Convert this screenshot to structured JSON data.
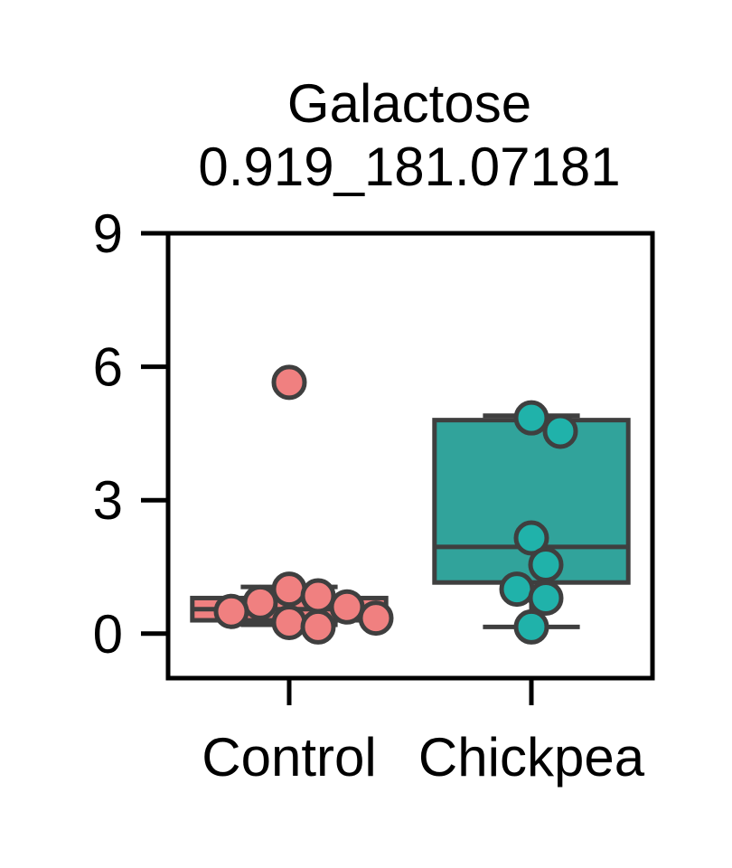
{
  "chart_data": {
    "type": "box",
    "title": "Galactose",
    "subtitle": "0.919_181.07181",
    "xlabel": "",
    "ylabel": "",
    "ylim": [
      -1,
      9
    ],
    "yticks": [
      0,
      3,
      6,
      9
    ],
    "categories": [
      "Control",
      "Chickpea"
    ],
    "grid": false,
    "legend": "none",
    "series": [
      {
        "category": "Control",
        "color": "#F08080",
        "box": {
          "whisker_low": 0.2,
          "q1": 0.3,
          "median": 0.55,
          "q3": 0.8,
          "whisker_high": 1.05
        },
        "points": [
          5.65,
          1.0,
          0.85,
          0.7,
          0.6,
          0.5,
          0.35,
          0.25,
          0.15
        ]
      },
      {
        "category": "Chickpea",
        "color": "#20B2AA",
        "box_color": "#31A39B",
        "box": {
          "whisker_low": 0.15,
          "q1": 1.15,
          "median": 1.95,
          "q3": 4.8,
          "whisker_high": 4.9
        },
        "points": [
          4.85,
          4.55,
          2.15,
          1.55,
          1.0,
          0.8,
          0.15
        ]
      }
    ],
    "colors": {
      "edge": "#3F3F3F",
      "axis": "#000000"
    }
  }
}
